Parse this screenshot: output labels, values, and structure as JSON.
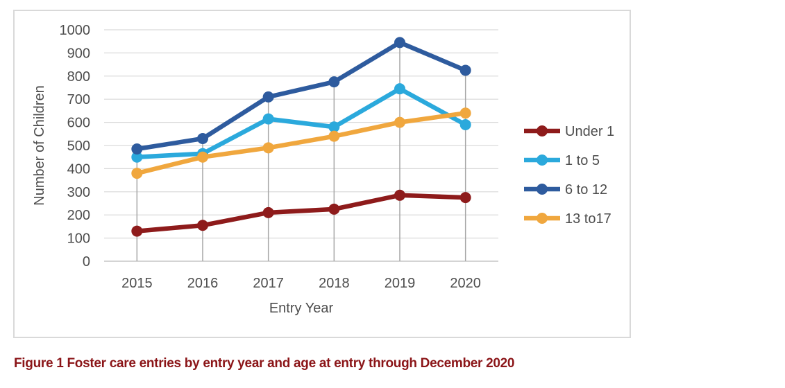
{
  "caption": "Figure 1 Foster care entries by entry year and age at entry through December 2020",
  "colors": {
    "background": "#FFFFFF",
    "frame_border": "#D9D9D9",
    "gridline": "#D9D9D9",
    "axis_line": "#C6C6C6",
    "drop_line": "#A6A6A6",
    "axis_text": "#4D4D4D",
    "caption": "#8B1518",
    "series_under_1": "#8E1B1B",
    "series_1_to_5": "#2BA9DC",
    "series_6_to_12": "#2E5B9E",
    "series_13_to_17": "#F0A73E"
  },
  "chart_data": {
    "type": "line",
    "title": "",
    "xlabel": "Entry Year",
    "ylabel": "Number of Children",
    "categories": [
      "2015",
      "2016",
      "2017",
      "2018",
      "2019",
      "2020"
    ],
    "series": [
      {
        "name": "Under 1",
        "color": "#8E1B1B",
        "values": [
          130,
          155,
          210,
          225,
          285,
          275
        ]
      },
      {
        "name": "1 to 5",
        "color": "#2BA9DC",
        "values": [
          450,
          465,
          615,
          580,
          745,
          590
        ]
      },
      {
        "name": "6 to 12",
        "color": "#2E5B9E",
        "values": [
          485,
          530,
          710,
          775,
          945,
          825
        ]
      },
      {
        "name": "13 to17",
        "color": "#F0A73E",
        "values": [
          380,
          450,
          490,
          540,
          600,
          640
        ]
      }
    ],
    "ylim": [
      0,
      1000
    ],
    "ytick_step": 100,
    "grid": "horizontal",
    "drop_lines": true,
    "legend_position": "right",
    "marker": "circle"
  }
}
